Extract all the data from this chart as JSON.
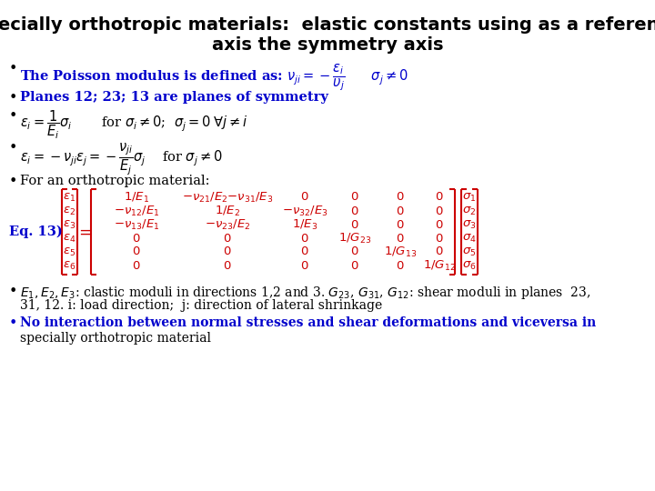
{
  "title_line1": "Specially orthotropic materials:  elastic constants using as a reference",
  "title_line2": "axis the symmetry axis",
  "bg_color": "#ffffff",
  "title_color": "#000000",
  "title_fontsize": 14,
  "blue_color": "#0000cc",
  "red_color": "#cc0000",
  "black_color": "#000000",
  "body_fontsize": 10.5,
  "eq_label": "Eq. 13)"
}
